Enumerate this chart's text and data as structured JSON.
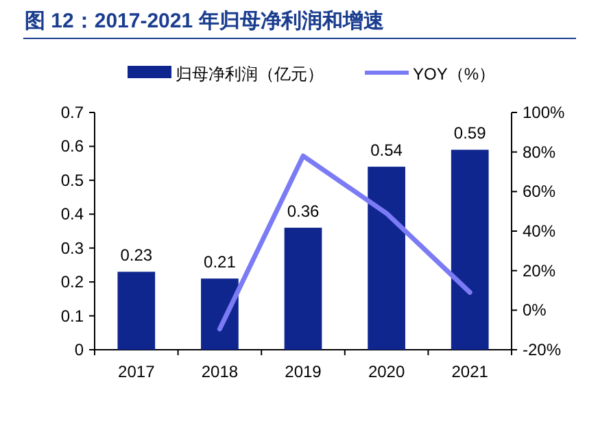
{
  "chart_data": {
    "type": "bar",
    "title": "图 12：2017-2021 年归母净利润和增速",
    "categories": [
      "2017",
      "2018",
      "2019",
      "2020",
      "2021"
    ],
    "series": [
      {
        "name": "归母净利润（亿元）",
        "color": "#10268f",
        "values": [
          0.23,
          0.21,
          0.36,
          0.54,
          0.59
        ],
        "value_labels": [
          "0.23",
          "0.21",
          "0.36",
          "0.54",
          "0.59"
        ]
      },
      {
        "name": "YOY（%）",
        "type": "line",
        "axis": "y2",
        "color": "#7b7bf5",
        "values": [
          null,
          -9.5,
          78,
          49,
          9
        ]
      }
    ],
    "ylim": [
      0,
      0.7
    ],
    "yticks": [
      0,
      0.1,
      0.2,
      0.3,
      0.4,
      0.5,
      0.6,
      0.7
    ],
    "y2lim": [
      -20,
      100
    ],
    "y2ticks": [
      {
        "value": -20,
        "label": "-20%"
      },
      {
        "value": 0,
        "label": "0%"
      },
      {
        "value": 20,
        "label": "20%"
      },
      {
        "value": 40,
        "label": "40%"
      },
      {
        "value": 60,
        "label": "60%"
      },
      {
        "value": 80,
        "label": "80%"
      },
      {
        "value": 100,
        "label": "100%"
      }
    ],
    "legend": "top",
    "grid": false,
    "marker": "none",
    "line_style": "solid"
  }
}
